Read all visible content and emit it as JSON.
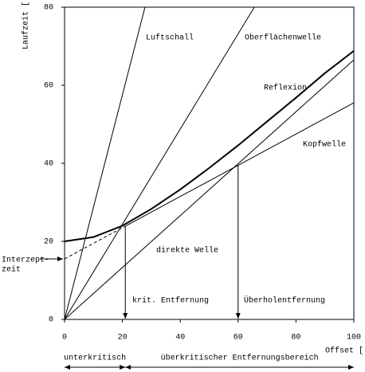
{
  "chart_data": {
    "type": "line",
    "xlabel": "Offset [",
    "ylabel": "Laufzeit [",
    "xlim": [
      0,
      100
    ],
    "ylim": [
      0,
      80
    ],
    "xticks": [
      0,
      20,
      40,
      60,
      80,
      100
    ],
    "yticks": [
      0,
      20,
      40,
      60,
      80
    ],
    "color": "#000000",
    "series": [
      {
        "name": "Luftschall",
        "x": [
          0,
          27.8
        ],
        "values": [
          0,
          80
        ]
      },
      {
        "name": "Oberflächenwelle",
        "x": [
          0,
          65.6
        ],
        "values": [
          0,
          80
        ]
      },
      {
        "name": "Reflexion",
        "x": [
          0,
          10,
          20,
          30,
          40,
          50,
          60,
          70,
          80,
          90,
          100
        ],
        "values": [
          20,
          21.1,
          24,
          28.3,
          33.3,
          38.8,
          44.6,
          50.7,
          56.8,
          63.1,
          68.8
        ],
        "bold": true
      },
      {
        "name": "Kopfwelle",
        "x": [
          0,
          21,
          100
        ],
        "values": [
          15.5,
          23.9,
          55.5
        ],
        "dashed_segments": [
          0
        ]
      },
      {
        "name": "direkte Welle",
        "x": [
          0,
          100
        ],
        "values": [
          0,
          66.5
        ]
      }
    ],
    "annotations": [
      {
        "text": "krit. Entfernung",
        "x": 21,
        "y": 23.9
      },
      {
        "text": "Überholentfernung",
        "x": 60,
        "y": 39.5
      }
    ],
    "intercept_label": [
      "Interzept-",
      "zeit"
    ],
    "ranges": [
      {
        "text": "unterkritisch",
        "from": 0,
        "to": 21
      },
      {
        "text": "überkritischer Entfernungsbereich",
        "from": 21,
        "to": 100
      }
    ]
  }
}
